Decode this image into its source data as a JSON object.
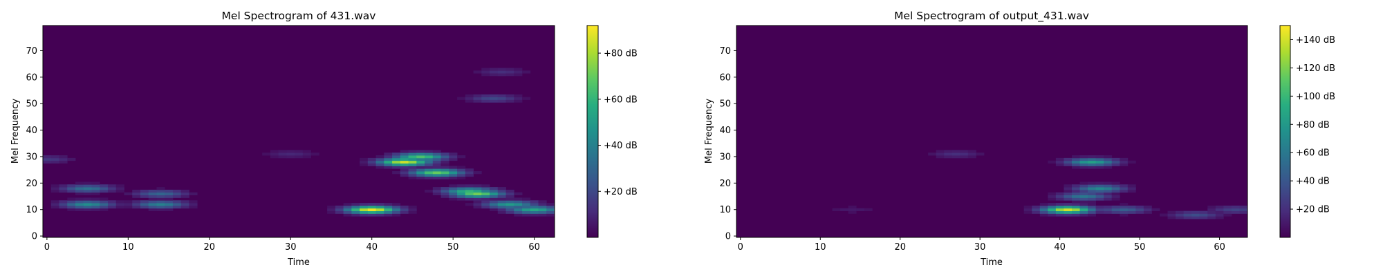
{
  "chart_data": [
    {
      "type": "heatmap",
      "title": "Mel Spectrogram of 431.wav",
      "xlabel": "Time",
      "ylabel": "Mel Frequency",
      "xlim": [
        -0.5,
        62.5
      ],
      "ylim": [
        -0.5,
        79.5
      ],
      "x_ticks": [
        0,
        10,
        20,
        30,
        40,
        50,
        60
      ],
      "y_ticks": [
        0,
        10,
        20,
        30,
        40,
        50,
        60,
        70
      ],
      "colorbar": {
        "label_unit": "dB",
        "range": [
          0,
          92
        ],
        "ticks": [
          20,
          40,
          60,
          80
        ],
        "tick_labels": [
          "+20 dB",
          "+40 dB",
          "+60 dB",
          "+80 dB"
        ]
      },
      "colormap": "viridis",
      "hotspots": [
        {
          "t": 40,
          "m": 10,
          "db": 90
        },
        {
          "t": 44,
          "m": 28,
          "db": 85
        },
        {
          "t": 46,
          "m": 30,
          "db": 65
        },
        {
          "t": 48,
          "m": 24,
          "db": 70
        },
        {
          "t": 53,
          "m": 16,
          "db": 72
        },
        {
          "t": 52,
          "m": 17,
          "db": 60
        },
        {
          "t": 57,
          "m": 12,
          "db": 50
        },
        {
          "t": 60,
          "m": 10,
          "db": 55
        },
        {
          "t": 5,
          "m": 12,
          "db": 45
        },
        {
          "t": 5,
          "m": 18,
          "db": 35
        },
        {
          "t": 14,
          "m": 12,
          "db": 40
        },
        {
          "t": 14,
          "m": 16,
          "db": 30
        },
        {
          "t": 55,
          "m": 52,
          "db": 20
        },
        {
          "t": 56,
          "m": 62,
          "db": 12
        },
        {
          "t": 30,
          "m": 31,
          "db": 10
        },
        {
          "t": 0,
          "m": 29,
          "db": 15
        }
      ]
    },
    {
      "type": "heatmap",
      "title": "Mel Spectrogram of output_431.wav",
      "xlabel": "Time",
      "ylabel": "Mel Frequency",
      "xlim": [
        -0.5,
        63.5
      ],
      "ylim": [
        -0.5,
        79.5
      ],
      "x_ticks": [
        0,
        10,
        20,
        30,
        40,
        50,
        60
      ],
      "y_ticks": [
        0,
        10,
        20,
        30,
        40,
        50,
        60,
        70
      ],
      "colorbar": {
        "label_unit": "dB",
        "range": [
          0,
          150
        ],
        "ticks": [
          20,
          40,
          60,
          80,
          100,
          120,
          140
        ],
        "tick_labels": [
          "+20 dB",
          "+40 dB",
          "+60 dB",
          "+80 dB",
          "+100 dB",
          "+120 dB",
          "+140 dB"
        ]
      },
      "colormap": "viridis",
      "hotspots": [
        {
          "t": 41,
          "m": 10,
          "db": 140
        },
        {
          "t": 44,
          "m": 28,
          "db": 85
        },
        {
          "t": 45,
          "m": 18,
          "db": 70
        },
        {
          "t": 43,
          "m": 15,
          "db": 60
        },
        {
          "t": 48,
          "m": 10,
          "db": 45
        },
        {
          "t": 57,
          "m": 8,
          "db": 35
        },
        {
          "t": 62,
          "m": 10,
          "db": 30
        },
        {
          "t": 27,
          "m": 31,
          "db": 20
        },
        {
          "t": 14,
          "m": 10,
          "db": 10
        }
      ]
    }
  ]
}
